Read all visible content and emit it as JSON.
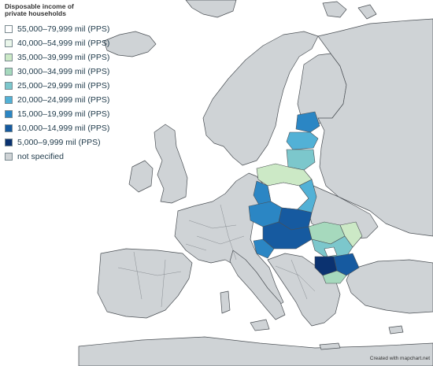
{
  "legend": {
    "title": "Disposable income of private households",
    "items": [
      {
        "label": "55,000–79,999 mil (PPS)",
        "color": "#ffffff"
      },
      {
        "label": "40,000–54,999 mil (PPS)",
        "color": "#eaf6ea"
      },
      {
        "label": "35,000–39,999 mil (PPS)",
        "color": "#cce9c6"
      },
      {
        "label": "30,000–34,999 mil (PPS)",
        "color": "#a6d9bd"
      },
      {
        "label": "25,000–29,999 mil (PPS)",
        "color": "#7cc7cc"
      },
      {
        "label": "20,000–24,999 mil (PPS)",
        "color": "#52b1d6"
      },
      {
        "label": "15,000–19,999 mil (PPS)",
        "color": "#2b86c4"
      },
      {
        "label": "10,000–14,999 mil (PPS)",
        "color": "#165aa0"
      },
      {
        "label": "5,000–9,999 mil (PPS)",
        "color": "#0b3270"
      },
      {
        "label": "not specified",
        "color": "#cfd3d6"
      }
    ]
  },
  "credit": "Created with mapchart.net",
  "colors": {
    "sea": "#ffffff",
    "land": "#cfd3d6",
    "border": "#4a4f54"
  }
}
